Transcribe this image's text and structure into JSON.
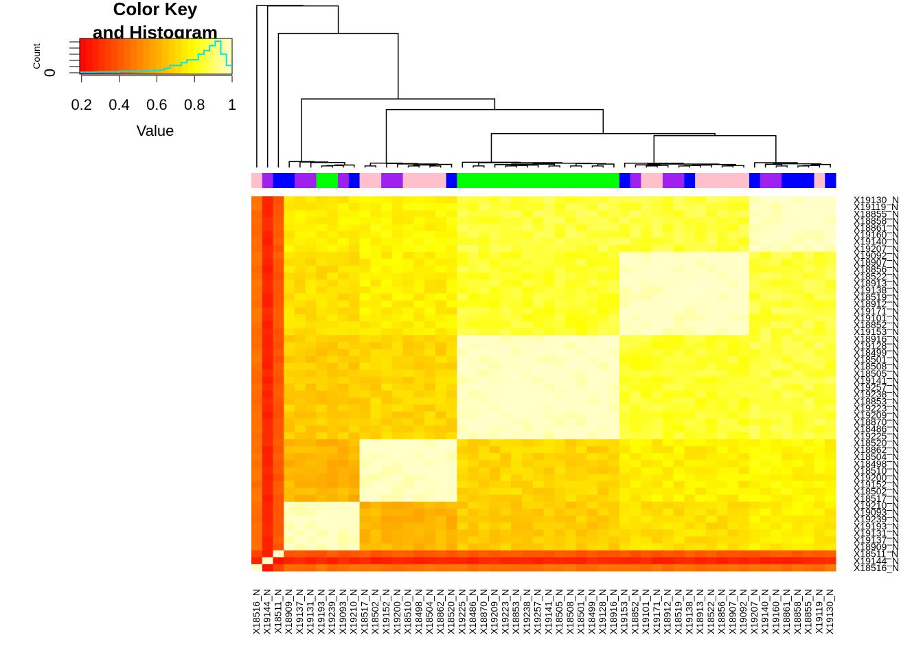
{
  "chart_data": {
    "type": "heatmap",
    "color_key": {
      "title_line1": "Color Key",
      "title_line2": "and Histogram",
      "xlabel": "Value",
      "ylabel": "Count",
      "y_tick": "0",
      "x_ticks": [
        "0.2",
        "0.4",
        "0.6",
        "0.8",
        "1"
      ],
      "x_range": [
        0.19,
        1.0
      ],
      "histogram_color": "#00e5e5",
      "histogram": [
        0.02,
        0.02,
        0.02,
        0.03,
        0.03,
        0.03,
        0.03,
        0.05,
        0.05,
        0.05,
        0.05,
        0.05,
        0.07,
        0.07,
        0.09,
        0.14,
        0.23,
        0.23,
        0.32,
        0.41,
        0.41,
        0.59,
        0.7,
        0.86,
        1.0,
        0.59,
        0.23
      ]
    },
    "columns": [
      "X18516_N",
      "X19144_N",
      "X18511_N",
      "X18909_N",
      "X19137_N",
      "X19131_N",
      "X19193_N",
      "X19239_N",
      "X19093_N",
      "X19210_N",
      "X18517_N",
      "X18502_N",
      "X19152_N",
      "X19200_N",
      "X18510_N",
      "X18498_N",
      "X18504_N",
      "X18862_N",
      "X18520_N",
      "X19225_N",
      "X18486_N",
      "X18870_N",
      "X19209_N",
      "X19223_N",
      "X18853_N",
      "X19238_N",
      "X19257_N",
      "X19141_N",
      "X18505_N",
      "X18508_N",
      "X18501_N",
      "X18499_N",
      "X19128_N",
      "X18916_N",
      "X19153_N",
      "X18852_N",
      "X19101_N",
      "X19171_N",
      "X18912_N",
      "X18519_N",
      "X19138_N",
      "X18913_N",
      "X18522_N",
      "X18856_N",
      "X18907_N",
      "X19092_N",
      "X19207_N",
      "X19140_N",
      "X19160_N",
      "X18861_N",
      "X18858_N",
      "X18855_N",
      "X19119_N",
      "X19130_N"
    ],
    "rows": [
      "X19130_N",
      "X19119_N",
      "X18855_N",
      "X18858_N",
      "X18861_N",
      "X19160_N",
      "X19140_N",
      "X19207_N",
      "X19092_N",
      "X18907_N",
      "X18856_N",
      "X18522_N",
      "X18913_N",
      "X19138_N",
      "X18519_N",
      "X18912_N",
      "X19171_N",
      "X19101_N",
      "X18852_N",
      "X19153_N",
      "X18916_N",
      "X19128_N",
      "X18499_N",
      "X18501_N",
      "X18508_N",
      "X18505_N",
      "X19141_N",
      "X19257_N",
      "X19238_N",
      "X18853_N",
      "X19223_N",
      "X19209_N",
      "X18870_N",
      "X18486_N",
      "X19225_N",
      "X18520_N",
      "X18862_N",
      "X18504_N",
      "X18498_N",
      "X18510_N",
      "X19200_N",
      "X19152_N",
      "X18502_N",
      "X18517_N",
      "X19210_N",
      "X19093_N",
      "X19239_N",
      "X19193_N",
      "X19131_N",
      "X19137_N",
      "X18909_N",
      "X18511_N",
      "X19144_N",
      "X18516_N"
    ],
    "column_groups": [
      "pink",
      "purple",
      "blue",
      "blue",
      "purple",
      "purple",
      "green",
      "green",
      "purple",
      "blue",
      "pink",
      "pink",
      "purple",
      "purple",
      "pink",
      "pink",
      "pink",
      "pink",
      "blue",
      "green",
      "green",
      "green",
      "green",
      "green",
      "green",
      "green",
      "green",
      "green",
      "green",
      "green",
      "green",
      "green",
      "green",
      "green",
      "blue",
      "purple",
      "pink",
      "pink",
      "purple",
      "purple",
      "blue",
      "pink",
      "pink",
      "pink",
      "pink",
      "pink",
      "blue",
      "purple",
      "purple",
      "blue",
      "blue",
      "blue",
      "pink",
      "blue"
    ],
    "group_colors": {
      "pink": "#ffc0cb",
      "purple": "#a020f0",
      "blue": "#0000ff",
      "green": "#00ff00"
    },
    "cluster_blocks": [
      [
        0,
        10,
        0.6
      ],
      [
        10,
        19,
        0.76
      ],
      [
        19,
        34,
        0.92
      ],
      [
        34,
        46,
        0.84
      ],
      [
        46,
        54,
        0.85
      ]
    ],
    "block_similarity": [
      [
        1.0,
        0.62,
        0.68,
        0.72,
        0.76
      ],
      [
        0.62,
        1.0,
        0.7,
        0.76,
        0.78
      ],
      [
        0.68,
        0.7,
        1.0,
        0.84,
        0.86
      ],
      [
        0.72,
        0.76,
        0.84,
        1.0,
        0.86
      ],
      [
        0.76,
        0.78,
        0.86,
        0.86,
        1.0
      ]
    ],
    "outlier_columns": {
      "0": 0.42,
      "1": 0.24,
      "2": 0.36
    }
  }
}
